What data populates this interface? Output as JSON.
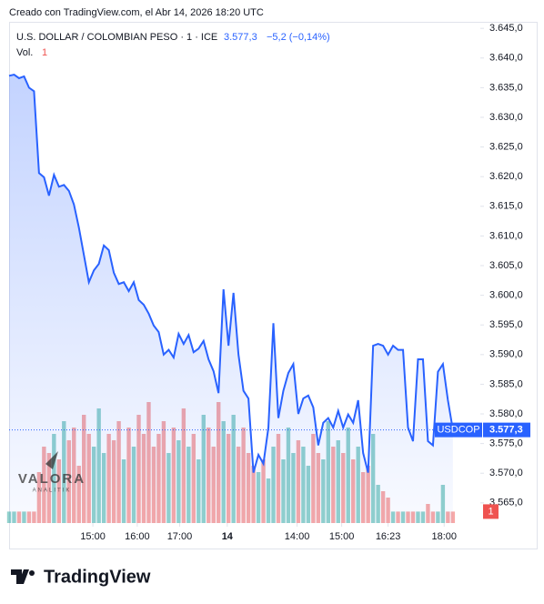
{
  "created": "Creado con TradingView.com, el Abr 14, 2026 18:20 UTC",
  "footer": "TradingView",
  "watermark": {
    "title": "VALORA",
    "subtitle": "ANALITIK"
  },
  "chart_data": {
    "type": "line",
    "title": "U.S. DOLLAR / COLOMBIAN PESO · 1 · ICE",
    "last_label": "3.577,3",
    "change_label": "−5,2 (−0,14%)",
    "volume_title": "Vol.",
    "volume_label": "1",
    "series": [
      {
        "name": "USDCOP",
        "color": "#2962ff",
        "values": [
          3637.0,
          3637.2,
          3636.6,
          3636.9,
          3635.0,
          3634.4,
          3620.6,
          3619.9,
          3616.8,
          3620.3,
          3618.3,
          3618.6,
          3617.6,
          3615.3,
          3611.4,
          3606.8,
          3602.2,
          3604.2,
          3605.3,
          3608.4,
          3607.6,
          3603.8,
          3601.9,
          3602.2,
          3600.7,
          3602.2,
          3599.2,
          3598.4,
          3596.9,
          3594.9,
          3593.8,
          3590.0,
          3590.8,
          3589.5,
          3593.5,
          3591.8,
          3593.3,
          3590.4,
          3591.0,
          3592.3,
          3589.2,
          3587.2,
          3583.5,
          3601.0,
          3591.5,
          3600.4,
          3590.0,
          3583.9,
          3582.6,
          3570.1,
          3573.1,
          3571.6,
          3577.7,
          3595.3,
          3579.3,
          3583.9,
          3586.9,
          3588.4,
          3580.0,
          3582.6,
          3583.1,
          3581.1,
          3574.7,
          3578.5,
          3579.3,
          3577.7,
          3580.5,
          3577.7,
          3579.9,
          3578.5,
          3582.3,
          3573.4,
          3570.1,
          3591.5,
          3591.8,
          3591.5,
          3590.0,
          3591.5,
          3590.8,
          3590.8,
          3577.7,
          3575.4,
          3589.2,
          3589.2,
          3575.4,
          3574.7,
          3587.1,
          3588.4,
          3582.3,
          3577.3
        ]
      }
    ],
    "volume": {
      "up_color": "#26a69a",
      "down_color": "#ef5350",
      "vlim": [
        0,
        100
      ],
      "values": [
        9,
        9,
        9,
        9,
        9,
        9,
        40,
        60,
        55,
        70,
        50,
        80,
        65,
        75,
        45,
        85,
        70,
        60,
        90,
        55,
        70,
        65,
        80,
        50,
        75,
        60,
        85,
        70,
        95,
        60,
        70,
        80,
        55,
        75,
        65,
        90,
        60,
        70,
        50,
        85,
        75,
        60,
        95,
        80,
        70,
        85,
        60,
        75,
        55,
        45,
        40,
        50,
        35,
        60,
        70,
        50,
        75,
        55,
        65,
        60,
        45,
        70,
        55,
        50,
        80,
        60,
        65,
        55,
        75,
        50,
        60,
        40,
        45,
        70,
        30,
        25,
        20,
        9,
        9,
        9,
        9,
        9,
        9,
        9,
        15,
        9,
        9,
        30,
        9,
        9
      ]
    },
    "last": {
      "value": 3577.3,
      "label": "3.577,3"
    },
    "xlim": [
      0,
      94.5
    ],
    "xticks": [
      {
        "value": 16.8,
        "label": "15:00"
      },
      {
        "value": 25.7,
        "label": "16:00"
      },
      {
        "value": 34.2,
        "label": "17:00"
      },
      {
        "value": 43.75,
        "label": "14"
      },
      {
        "value": 57.75,
        "label": "14:00"
      },
      {
        "value": 66.7,
        "label": "15:00"
      },
      {
        "value": 76,
        "label": "16:23"
      },
      {
        "value": 87.25,
        "label": "18:00"
      }
    ],
    "ylim": [
      3561.6,
      3646.1
    ],
    "yticks": [
      {
        "value": 3645,
        "label": "3.645,0"
      },
      {
        "value": 3640,
        "label": "3.640,0"
      },
      {
        "value": 3635,
        "label": "3.635,0"
      },
      {
        "value": 3630,
        "label": "3.630,0"
      },
      {
        "value": 3625,
        "label": "3.625,0"
      },
      {
        "value": 3620,
        "label": "3.620,0"
      },
      {
        "value": 3615,
        "label": "3.615,0"
      },
      {
        "value": 3610,
        "label": "3.610,0"
      },
      {
        "value": 3605,
        "label": "3.605,0"
      },
      {
        "value": 3600,
        "label": "3.600,0"
      },
      {
        "value": 3595,
        "label": "3.595,0"
      },
      {
        "value": 3590,
        "label": "3.590,0"
      },
      {
        "value": 3585,
        "label": "3.585,0"
      },
      {
        "value": 3580,
        "label": "3.580,0"
      },
      {
        "value": 3575,
        "label": "3.575,0"
      },
      {
        "value": 3570,
        "label": "3.570,0"
      },
      {
        "value": 3565,
        "label": "3.565,0"
      }
    ],
    "grid": false
  }
}
